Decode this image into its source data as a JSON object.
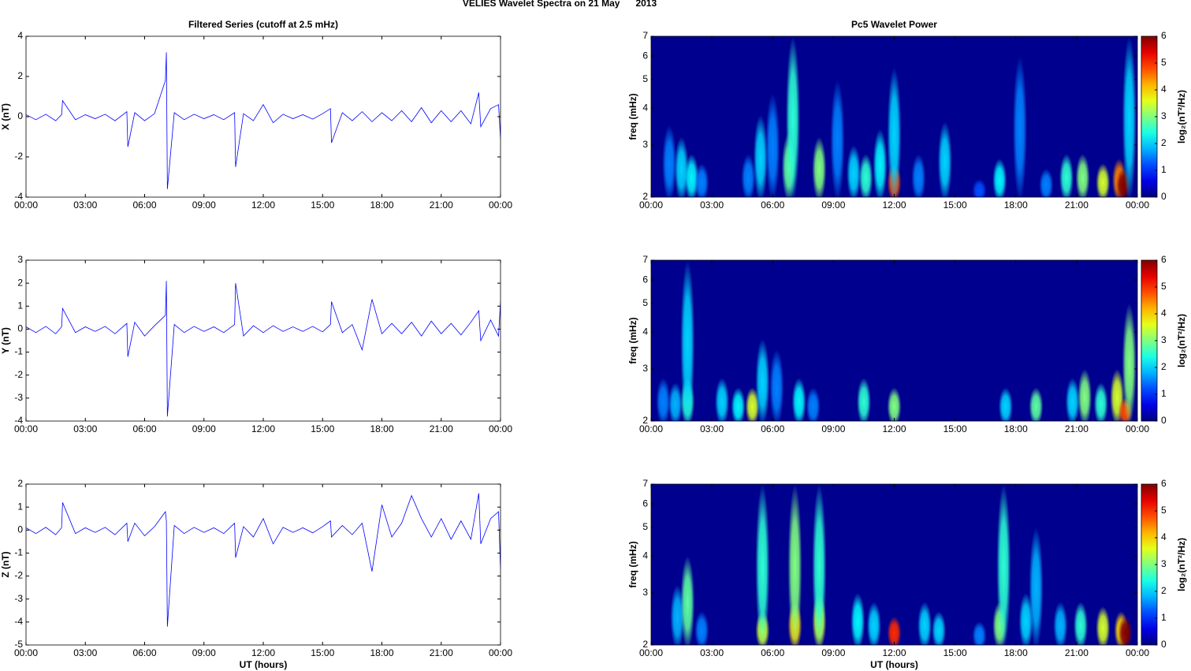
{
  "title": "VELIES Wavelet Spectra on 21 May      2013",
  "chart_data": [
    {
      "type": "line",
      "title": "Filtered Series (cutoff at 2.5 mHz)",
      "ylabel": "X (nT)",
      "color": "#0000ff",
      "xlim": [
        0,
        24
      ],
      "xticks": [
        {
          "value": 0,
          "label": "00:00"
        },
        {
          "value": 3,
          "label": "03:00"
        },
        {
          "value": 6,
          "label": "06:00"
        },
        {
          "value": 9,
          "label": "09:00"
        },
        {
          "value": 12,
          "label": "12:00"
        },
        {
          "value": 15,
          "label": "15:00"
        },
        {
          "value": 18,
          "label": "18:00"
        },
        {
          "value": 21,
          "label": "21:00"
        },
        {
          "value": 24,
          "label": "00:00"
        }
      ],
      "ylim": [
        -4,
        4
      ],
      "yticks": [
        -4,
        -2,
        0,
        2,
        4
      ],
      "x": [
        0,
        0.5,
        1,
        1.5,
        1.8,
        1.85,
        2.5,
        3,
        3.5,
        4,
        4.5,
        5.1,
        5.15,
        5.5,
        6,
        6.5,
        7.05,
        7.1,
        7.15,
        7.5,
        8,
        8.5,
        9,
        9.5,
        10,
        10.55,
        10.6,
        11,
        11.5,
        12,
        12.5,
        13,
        13.5,
        14,
        14.5,
        15,
        15.4,
        15.45,
        16,
        16.5,
        17,
        17.5,
        18,
        18.5,
        19,
        19.5,
        20,
        20.5,
        21,
        21.5,
        22,
        22.5,
        22.9,
        23,
        23.5,
        23.9,
        24
      ],
      "values": [
        0.1,
        -0.15,
        0.12,
        -0.2,
        0.1,
        0.8,
        -0.15,
        0.1,
        -0.1,
        0.12,
        -0.2,
        0.25,
        -1.5,
        0.2,
        -0.2,
        0.15,
        1.8,
        3.2,
        -3.6,
        0.2,
        -0.15,
        0.12,
        -0.1,
        0.1,
        -0.15,
        0.2,
        -2.5,
        0.15,
        -0.2,
        0.6,
        -0.3,
        0.12,
        -0.1,
        0.1,
        -0.12,
        0.15,
        0.4,
        -1.3,
        0.2,
        -0.2,
        0.25,
        -0.25,
        0.2,
        -0.2,
        0.3,
        -0.25,
        0.45,
        -0.3,
        0.3,
        -0.25,
        0.3,
        -0.35,
        1.2,
        -0.5,
        0.4,
        0.6,
        -1.1
      ]
    },
    {
      "type": "heatmap",
      "title": "Pc5 Wavelet Power",
      "ylabel": "freq (mHz)",
      "log_y": true,
      "background": "#00008f",
      "xlim": [
        0,
        24
      ],
      "xticks": [
        {
          "value": 0,
          "label": "00:00"
        },
        {
          "value": 3,
          "label": "03:00"
        },
        {
          "value": 6,
          "label": "06:00"
        },
        {
          "value": 9,
          "label": "09:00"
        },
        {
          "value": 12,
          "label": "12:00"
        },
        {
          "value": 15,
          "label": "15:00"
        },
        {
          "value": 18,
          "label": "18:00"
        },
        {
          "value": 21,
          "label": "21:00"
        },
        {
          "value": 24,
          "label": "00:00"
        }
      ],
      "ylim": [
        2,
        7
      ],
      "yticks": [
        2,
        3,
        4,
        5,
        6,
        7
      ],
      "x": [
        0.9,
        1.5,
        2.0,
        2.5,
        4.8,
        5.4,
        6.0,
        6.8,
        7.0,
        8.3,
        9.2,
        10.0,
        10.6,
        11.3,
        12.0,
        12.0,
        13.2,
        14.5,
        16.2,
        17.2,
        18.2,
        19.5,
        20.5,
        21.3,
        22.3,
        23.1,
        23.3,
        23.6
      ],
      "y": [
        3.5,
        3.2,
        2.8,
        2.6,
        2.8,
        3.8,
        4.5,
        3.3,
        7,
        3.2,
        5,
        3,
        2.8,
        3.4,
        2.6,
        5.5,
        2.8,
        3.6,
        2.3,
        2.7,
        6,
        2.5,
        2.8,
        2.8,
        2.6,
        2.7,
        2.5,
        7
      ],
      "values": [
        1.5,
        2,
        2.2,
        1.5,
        1.5,
        2,
        1.5,
        2.8,
        2.5,
        3,
        1.5,
        2,
        2.5,
        2.2,
        4.8,
        2,
        1.5,
        2,
        1.2,
        2.2,
        1.5,
        1.5,
        2.5,
        3,
        3.5,
        4.5,
        6,
        2
      ],
      "colorbar": {
        "label": "log₂(nT²/Hz)",
        "lim": [
          0,
          6
        ],
        "ticks": [
          0,
          1,
          2,
          3,
          4,
          5,
          6
        ],
        "colormap": "jet"
      }
    },
    {
      "type": "line",
      "ylabel": "Y (nT)",
      "color": "#0000ff",
      "xlim": [
        0,
        24
      ],
      "xticks": [
        {
          "value": 0,
          "label": "00:00"
        },
        {
          "value": 3,
          "label": "03:00"
        },
        {
          "value": 6,
          "label": "06:00"
        },
        {
          "value": 9,
          "label": "09:00"
        },
        {
          "value": 12,
          "label": "12:00"
        },
        {
          "value": 15,
          "label": "15:00"
        },
        {
          "value": 18,
          "label": "18:00"
        },
        {
          "value": 21,
          "label": "21:00"
        },
        {
          "value": 24,
          "label": "00:00"
        }
      ],
      "ylim": [
        -4,
        3
      ],
      "yticks": [
        -4,
        -3,
        -2,
        -1,
        0,
        1,
        2,
        3
      ],
      "x": [
        0,
        0.5,
        1,
        1.5,
        1.8,
        1.85,
        2.5,
        3,
        3.5,
        4,
        4.5,
        5.1,
        5.15,
        5.5,
        6,
        6.5,
        7.05,
        7.1,
        7.15,
        7.5,
        8,
        8.5,
        9,
        9.5,
        10,
        10.55,
        10.6,
        11,
        11.5,
        12,
        12.5,
        13,
        13.5,
        14,
        14.5,
        15,
        15.4,
        15.45,
        16,
        16.5,
        17,
        17.5,
        18,
        18.5,
        19,
        19.5,
        20,
        20.5,
        21,
        21.5,
        22,
        22.5,
        22.9,
        23,
        23.5,
        23.9,
        24
      ],
      "values": [
        0.1,
        -0.15,
        0.12,
        -0.2,
        0.1,
        0.9,
        -0.15,
        0.1,
        -0.1,
        0.12,
        -0.2,
        0.25,
        -1.2,
        0.3,
        -0.3,
        0.15,
        0.6,
        2.1,
        -3.8,
        0.2,
        -0.15,
        0.12,
        -0.1,
        0.1,
        -0.15,
        0.2,
        2.0,
        -0.3,
        0.15,
        -0.15,
        0.15,
        -0.1,
        0.1,
        -0.1,
        0.12,
        -0.12,
        0.2,
        1.2,
        -0.15,
        0.2,
        -0.9,
        1.3,
        -0.2,
        0.25,
        -0.2,
        0.3,
        -0.3,
        0.35,
        -0.2,
        0.25,
        -0.25,
        0.3,
        0.8,
        -0.5,
        0.4,
        -0.3,
        1.2
      ]
    },
    {
      "type": "heatmap",
      "ylabel": "freq (mHz)",
      "log_y": true,
      "background": "#00008f",
      "xlim": [
        0,
        24
      ],
      "xticks": [
        {
          "value": 0,
          "label": "00:00"
        },
        {
          "value": 3,
          "label": "03:00"
        },
        {
          "value": 6,
          "label": "06:00"
        },
        {
          "value": 9,
          "label": "09:00"
        },
        {
          "value": 12,
          "label": "12:00"
        },
        {
          "value": 15,
          "label": "15:00"
        },
        {
          "value": 18,
          "label": "18:00"
        },
        {
          "value": 21,
          "label": "21:00"
        },
        {
          "value": 24,
          "label": "00:00"
        }
      ],
      "ylim": [
        2,
        7
      ],
      "yticks": [
        2,
        3,
        4,
        5,
        6,
        7
      ],
      "x": [
        0.6,
        1.2,
        1.8,
        1.8,
        3.5,
        4.3,
        5.0,
        5.5,
        6.2,
        7.3,
        8.0,
        10.5,
        12.0,
        17.5,
        19.0,
        20.8,
        21.4,
        22.2,
        23.0,
        23.4,
        23.6
      ],
      "y": [
        2.8,
        2.7,
        2.8,
        7,
        2.8,
        2.6,
        2.6,
        3.8,
        3.5,
        2.8,
        2.6,
        2.8,
        2.6,
        2.6,
        2.6,
        2.8,
        3,
        2.7,
        3,
        2.4,
        5
      ],
      "values": [
        1.5,
        1.8,
        2.5,
        2,
        2,
        2.2,
        3.5,
        2,
        1.5,
        2.2,
        1.5,
        2.5,
        3,
        2,
        2.8,
        2,
        3,
        2.5,
        3.5,
        4.8,
        3
      ],
      "colorbar": {
        "label": "log₂(nT²/Hz)",
        "lim": [
          0,
          6
        ],
        "ticks": [
          0,
          1,
          2,
          3,
          4,
          5,
          6
        ],
        "colormap": "jet"
      }
    },
    {
      "type": "line",
      "ylabel": "Z (nT)",
      "xlabel": "UT (hours)",
      "color": "#0000ff",
      "xlim": [
        0,
        24
      ],
      "xticks": [
        {
          "value": 0,
          "label": "00:00"
        },
        {
          "value": 3,
          "label": "03:00"
        },
        {
          "value": 6,
          "label": "06:00"
        },
        {
          "value": 9,
          "label": "09:00"
        },
        {
          "value": 12,
          "label": "12:00"
        },
        {
          "value": 15,
          "label": "15:00"
        },
        {
          "value": 18,
          "label": "18:00"
        },
        {
          "value": 21,
          "label": "21:00"
        },
        {
          "value": 24,
          "label": "00:00"
        }
      ],
      "ylim": [
        -5,
        2
      ],
      "yticks": [
        -5,
        -4,
        -3,
        -2,
        -1,
        0,
        1,
        2
      ],
      "x": [
        0,
        0.5,
        1,
        1.5,
        1.8,
        1.85,
        2.5,
        3,
        3.5,
        4,
        4.5,
        5.1,
        5.15,
        5.5,
        6,
        6.5,
        7.05,
        7.1,
        7.15,
        7.5,
        8,
        8.5,
        9,
        9.5,
        10,
        10.55,
        10.6,
        11,
        11.5,
        12,
        12.5,
        13,
        13.5,
        14,
        14.5,
        15,
        15.4,
        15.45,
        16,
        16.5,
        17,
        17.5,
        18,
        18.5,
        19,
        19.5,
        20,
        20.5,
        21,
        21.5,
        22,
        22.5,
        22.9,
        23,
        23.5,
        23.9,
        24
      ],
      "values": [
        0.1,
        -0.15,
        0.12,
        -0.2,
        0.1,
        1.2,
        -0.15,
        0.1,
        -0.1,
        0.12,
        -0.2,
        0.3,
        -0.5,
        0.3,
        -0.25,
        0.15,
        0.8,
        0.4,
        -4.2,
        0.2,
        -0.15,
        0.12,
        -0.1,
        0.1,
        -0.15,
        0.3,
        -1.2,
        0.15,
        -0.3,
        0.5,
        -0.6,
        0.12,
        -0.1,
        0.1,
        -0.12,
        0.15,
        0.4,
        -0.3,
        0.2,
        -0.2,
        0.3,
        -1.8,
        1.1,
        -0.3,
        0.3,
        1.5,
        0.5,
        -0.3,
        0.5,
        -0.4,
        0.4,
        -0.4,
        1.6,
        -0.6,
        0.5,
        0.8,
        -1.7
      ]
    },
    {
      "type": "heatmap",
      "ylabel": "freq (mHz)",
      "xlabel": "UT (hours)",
      "log_y": true,
      "background": "#00008f",
      "xlim": [
        0,
        24
      ],
      "xticks": [
        {
          "value": 0,
          "label": "00:00"
        },
        {
          "value": 3,
          "label": "03:00"
        },
        {
          "value": 6,
          "label": "06:00"
        },
        {
          "value": 9,
          "label": "09:00"
        },
        {
          "value": 12,
          "label": "12:00"
        },
        {
          "value": 15,
          "label": "15:00"
        },
        {
          "value": 18,
          "label": "18:00"
        },
        {
          "value": 21,
          "label": "21:00"
        },
        {
          "value": 24,
          "label": "00:00"
        }
      ],
      "ylim": [
        2,
        7
      ],
      "yticks": [
        2,
        3,
        4,
        5,
        6,
        7
      ],
      "x": [
        1.3,
        1.8,
        2.5,
        5.5,
        5.5,
        7.1,
        7.1,
        8.3,
        8.3,
        10.2,
        11.0,
        12.0,
        13.5,
        14.2,
        16.2,
        17.2,
        17.4,
        18.5,
        19.0,
        20.2,
        21.2,
        22.3,
        23.2,
        23.4
      ],
      "y": [
        3.2,
        4,
        2.6,
        2.6,
        7,
        2.8,
        7,
        3,
        7,
        3,
        2.8,
        2.5,
        2.8,
        2.6,
        2.4,
        2.8,
        7,
        3,
        5,
        2.8,
        2.8,
        2.7,
        2.6,
        2.5
      ],
      "values": [
        1.8,
        2.8,
        1.5,
        3.5,
        2.5,
        4,
        3,
        3.5,
        2.5,
        2.2,
        2,
        5,
        2,
        2,
        1.5,
        3,
        2.5,
        2,
        1.8,
        1.8,
        2.5,
        3.5,
        4,
        6
      ],
      "colorbar": {
        "label": "log₂(nT²/Hz)",
        "lim": [
          0,
          6
        ],
        "ticks": [
          0,
          1,
          2,
          3,
          4,
          5,
          6
        ],
        "colormap": "jet"
      }
    }
  ]
}
